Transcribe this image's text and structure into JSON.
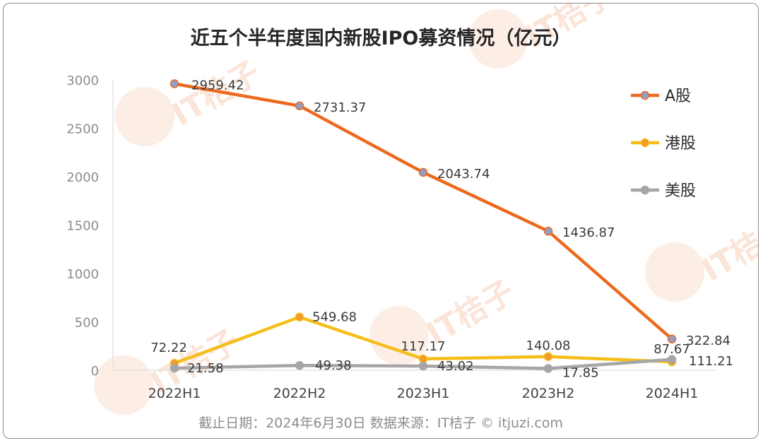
{
  "chart_data": {
    "type": "line",
    "title": "近五个半年度国内新股IPO募资情况（亿元）",
    "categories": [
      "2022H1",
      "2022H2",
      "2023H1",
      "2023H2",
      "2024H1"
    ],
    "ylim": [
      0,
      3000
    ],
    "yticks": [
      0,
      500,
      1000,
      1500,
      2000,
      2500,
      3000
    ],
    "grid": false,
    "legend_position": "right",
    "series": [
      {
        "name": "A股",
        "color": "#ec6a1e",
        "marker_fill": "#8f9fc9",
        "values": [
          2959.42,
          2731.37,
          2043.74,
          1436.87,
          322.84
        ],
        "labels": [
          "2959.42",
          "2731.37",
          "2043.74",
          "1436.87",
          "322.84"
        ]
      },
      {
        "name": "港股",
        "color": "#f5be1b",
        "marker_fill": "#f29a2c",
        "values": [
          72.22,
          549.68,
          117.17,
          140.08,
          87.67
        ],
        "labels": [
          "72.22",
          "549.68",
          "117.17",
          "140.08",
          "87.67"
        ]
      },
      {
        "name": "美股",
        "color": "#a6a6a6",
        "marker_fill": "#a6a6a6",
        "values": [
          21.58,
          49.38,
          43.02,
          17.85,
          111.21
        ],
        "labels": [
          "21.58",
          "49.38",
          "43.02",
          "17.85",
          "111.21"
        ]
      }
    ]
  },
  "footer": "截止日期：2024年6月30日     数据来源：IT桔子 © itjuzi.com",
  "watermark": {
    "brand": "IT桔子",
    "domain": "ITJUZI.COM"
  }
}
